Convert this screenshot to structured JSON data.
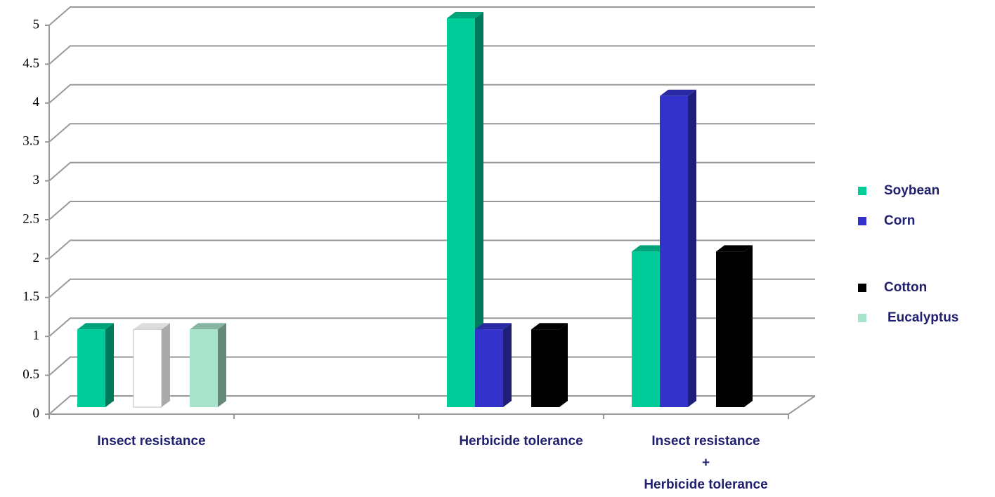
{
  "chart_data": {
    "type": "bar3d",
    "categories": [
      "Insect resistance",
      null,
      "Herbicide tolerance",
      "Insect resistance\n+\nHerbicide tolerance"
    ],
    "series": [
      {
        "name": "Soybean",
        "color": "#00cc99",
        "values": [
          1,
          null,
          5,
          2
        ]
      },
      {
        "name": "Corn",
        "color": "#3333cc",
        "values": [
          null,
          null,
          1,
          4
        ]
      },
      {
        "name": null,
        "color": "#ffffff",
        "values": [
          1,
          null,
          null,
          null
        ]
      },
      {
        "name": "Cotton",
        "color": "#000000",
        "values": [
          null,
          null,
          1,
          2
        ]
      },
      {
        "name": "Eucalyptus",
        "color": "#a8e4cc",
        "values": [
          1,
          null,
          null,
          null
        ]
      }
    ],
    "ylim": [
      0,
      5
    ],
    "yticks": [
      0,
      0.5,
      1,
      1.5,
      2,
      2.5,
      3,
      3.5,
      4,
      4.5,
      5
    ],
    "grid": true,
    "legend": "right"
  }
}
